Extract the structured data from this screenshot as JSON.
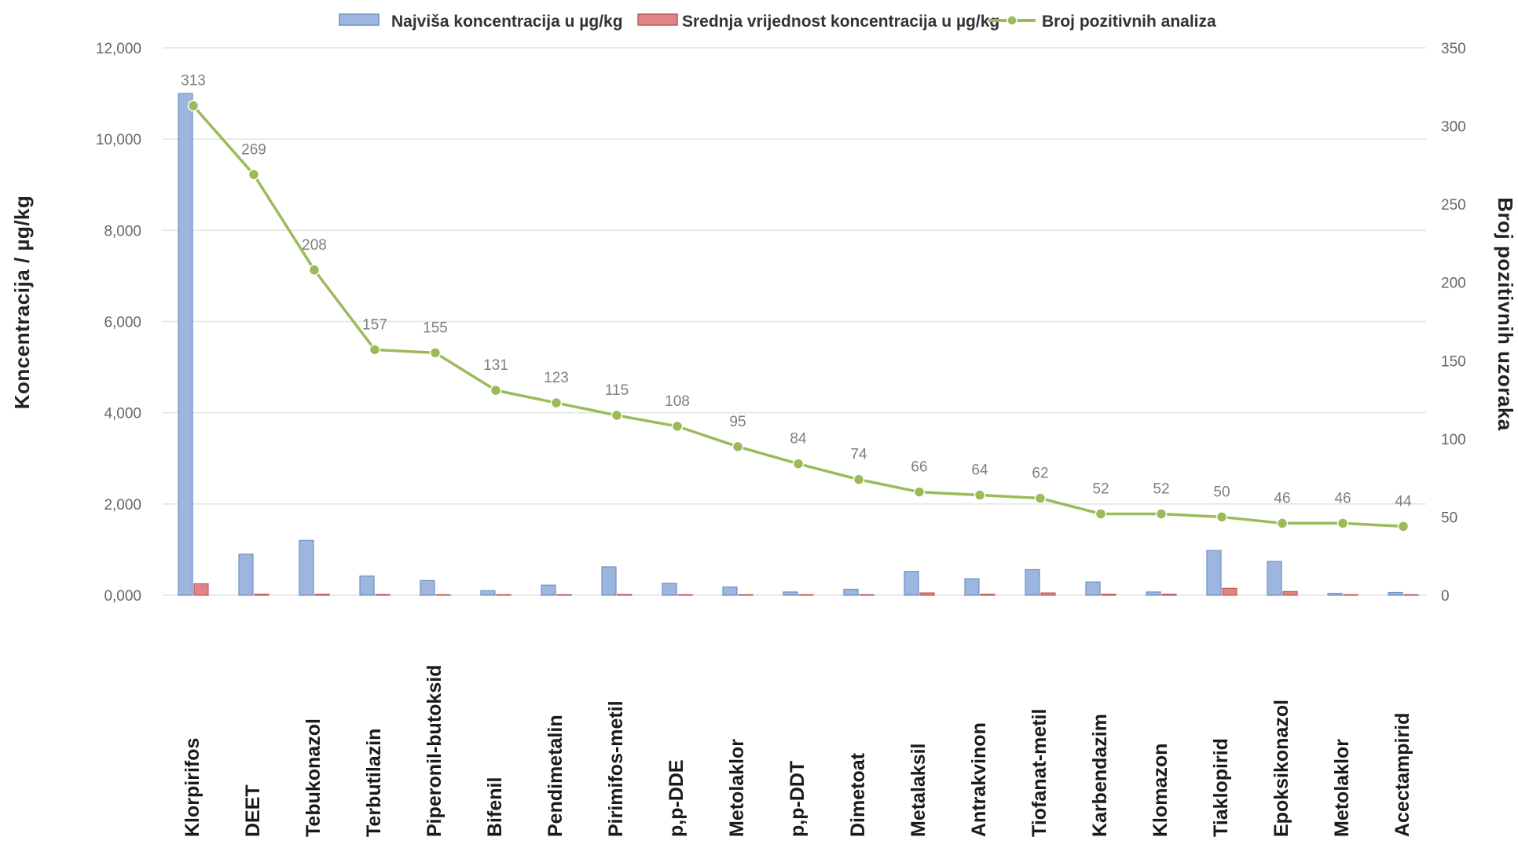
{
  "chart_data": {
    "type": "bar",
    "categories": [
      "Klorpirifos",
      "DEET",
      "Tebukonazol",
      "Terbutilazin",
      "Piperonil-butoksid",
      "Bifenil",
      "Pendimetalin",
      "Pirimifos-metil",
      "p,p-DDE",
      "Metolaklor",
      "p,p-DDT",
      "Dimetoat",
      "Metalaksil",
      "Antrakvinon",
      "Tiofanat-metil",
      "Karbendazim",
      "Klomazon",
      "Tiaklopirid",
      "Epoksikonazol",
      "Metolaklor",
      "Acectampirid"
    ],
    "series": [
      {
        "name": "Najviša koncentracija u µg/kg",
        "type": "bar",
        "axis": "left",
        "color": "#9db6e0",
        "values": [
          11000,
          900,
          1200,
          420,
          320,
          100,
          220,
          620,
          260,
          180,
          70,
          130,
          520,
          360,
          560,
          290,
          70,
          980,
          740,
          40,
          60
        ]
      },
      {
        "name": "Srednja vrijednost koncentracija u µg/kg",
        "type": "bar",
        "axis": "left",
        "color": "#e08585",
        "values": [
          250,
          20,
          20,
          15,
          10,
          10,
          10,
          15,
          10,
          10,
          10,
          10,
          50,
          20,
          50,
          20,
          20,
          150,
          80,
          10,
          10
        ]
      },
      {
        "name": "Broj pozitivnih analiza",
        "type": "line",
        "axis": "right",
        "color": "#9bbb59",
        "values": [
          313,
          269,
          208,
          157,
          155,
          131,
          123,
          115,
          108,
          95,
          84,
          74,
          66,
          64,
          62,
          52,
          52,
          50,
          46,
          46,
          44
        ],
        "data_labels": [
          "313",
          "269",
          "208",
          "157",
          "155",
          "131",
          "123",
          "115",
          "108",
          "95",
          "84",
          "74",
          "66",
          "64",
          "62",
          "52",
          "52",
          "50",
          "46",
          "46",
          "44"
        ]
      }
    ],
    "ylabel": "Koncentracija / µg/kg",
    "y2label": "Broj pozitivnih uzoraka",
    "ylim": [
      0,
      12000
    ],
    "y2lim": [
      0,
      350
    ],
    "yticks": [
      "0,000",
      "2,000",
      "4,000",
      "6,000",
      "8,000",
      "10,000",
      "12,000"
    ],
    "y2ticks": [
      "0",
      "50",
      "100",
      "150",
      "200",
      "250",
      "300",
      "350"
    ],
    "legend": [
      "Najviša koncentracija u µg/kg",
      "Srednja vrijednost koncentracija u µg/kg",
      "Broj pozitivnih analiza"
    ],
    "legend_position": "top",
    "grid": true
  }
}
